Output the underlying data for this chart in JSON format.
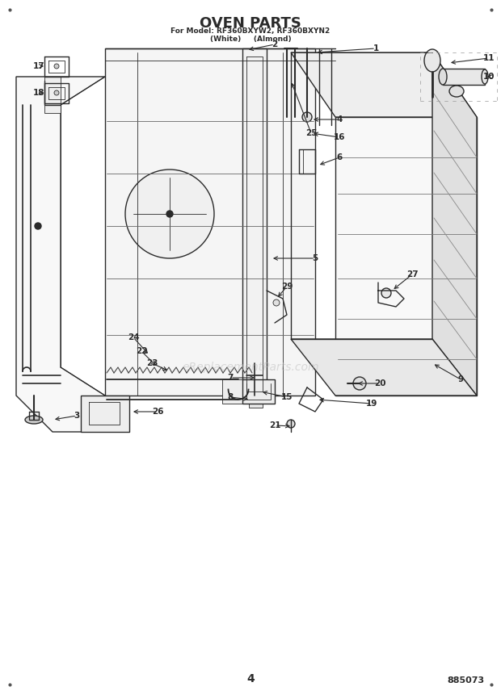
{
  "title": "OVEN PARTS",
  "subtitle": "For Model: RF360BXYW2, RF360BXYN2",
  "subtitle2": "(White)    (Almond)",
  "page_number": "4",
  "doc_number": "885073",
  "background_color": "#ffffff",
  "line_color": "#2a2a2a",
  "watermark": "eReplacementParts.com",
  "corner_dot_color": "#555555"
}
